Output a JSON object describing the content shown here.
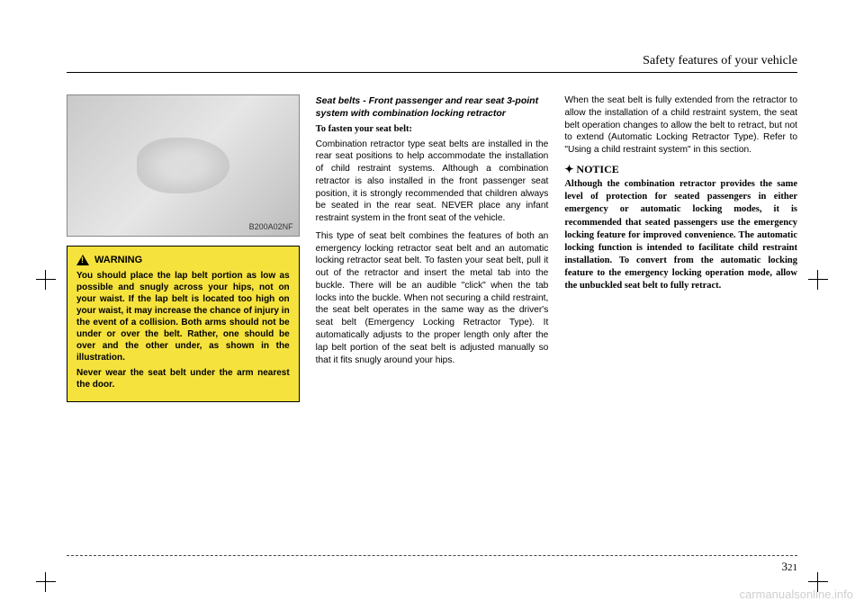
{
  "header": {
    "title": "Safety features of your vehicle"
  },
  "figure": {
    "label": "B200A02NF"
  },
  "warning": {
    "heading": "WARNING",
    "p1": "You should place the lap belt portion as low as possible and snugly across your hips, not on your waist. If the lap belt is located too high on your waist, it may increase the chance of injury in the event of a collision. Both arms should not be under or over the belt. Rather, one should be over and the other under, as shown in the illustration.",
    "p2": "Never wear the seat belt under the arm nearest the door."
  },
  "col2": {
    "subhead": "Seat belts - Front passenger and rear seat 3-point system with combination locking retractor",
    "sub2": "To fasten your seat belt:",
    "p1": "Combination retractor type seat belts are installed in the rear seat positions to help accommodate the installation of child restraint systems. Although a combination retractor is also installed in the front passenger seat position, it is strongly recommended that children always be seated in the rear seat. NEVER place any infant restraint system in the front seat of the vehicle.",
    "p2": "This type of seat belt combines the features of both an emergency locking retractor seat belt and an automatic locking retractor seat belt. To fasten your seat belt, pull it out of the retractor and insert the metal tab into the buckle. There will be an audible \"click\" when the tab locks into the buckle. When not securing a child restraint, the seat belt operates in the same way as the driver's seat belt (Emergency Locking Retractor Type). It automatically adjusts to the proper length only after the lap belt portion of the seat belt is adjusted manually so that it fits snugly around your hips."
  },
  "col3": {
    "p1": "When the seat belt is fully extended from the retractor to allow the installation of a child restraint system, the seat belt operation changes to allow the belt to retract, but not to extend (Automatic Locking Retractor Type). Refer to \"Using a child restraint system\" in this section.",
    "notice_head": "✦ NOTICE",
    "notice_body": "Although the combination retractor provides the same level of protection for seated passengers in either emergency or automatic locking modes, it is recommended that seated passengers use the emergency locking feature for improved convenience. The automatic locking function is intended to facilitate child restraint installation. To convert from the automatic locking feature to the emergency locking operation mode, allow the unbuckled seat belt to fully retract."
  },
  "pagenum": {
    "section": "3",
    "page": "21"
  },
  "watermark": "carmanualsonline.info",
  "colors": {
    "warning_bg": "#f5e23d",
    "text": "#000000",
    "watermark": "#cfcfcf"
  }
}
